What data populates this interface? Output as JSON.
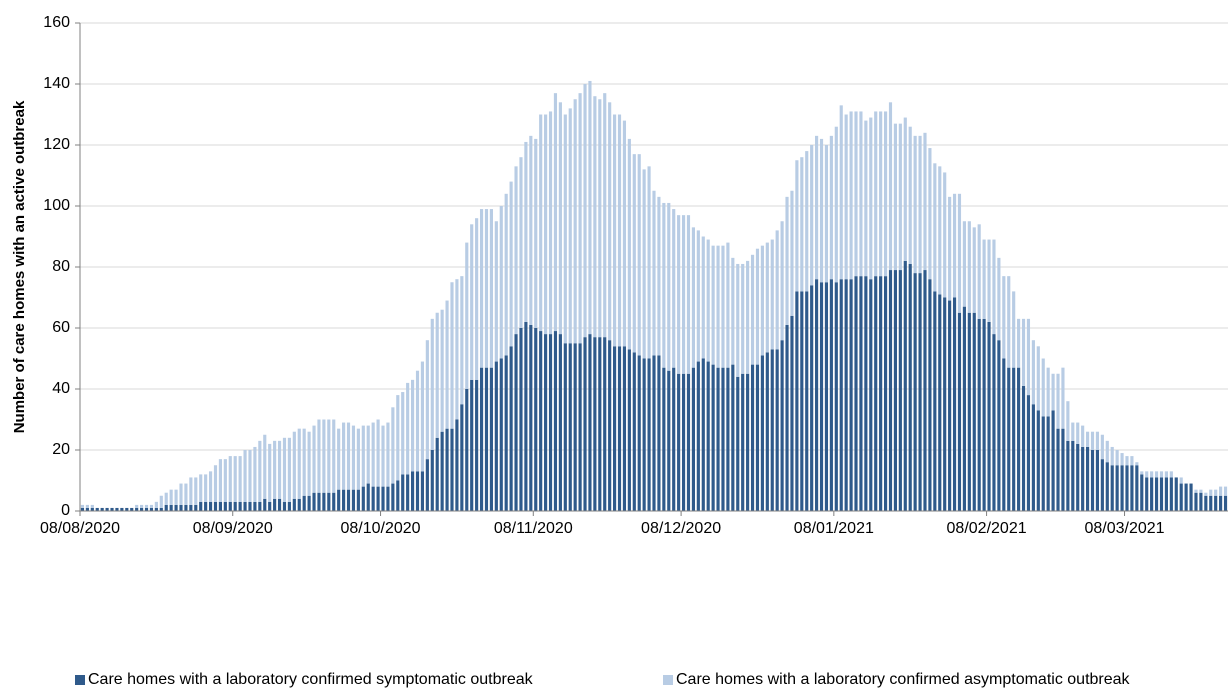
{
  "chart_data": {
    "type": "stacked_bar",
    "y_label": "Number of care homes with an active outbreak",
    "categories": [
      "08/08/2020",
      null,
      null,
      null,
      null,
      null,
      null,
      null,
      null,
      null,
      null,
      null,
      null,
      null,
      null,
      null,
      null,
      null,
      null,
      null,
      null,
      null,
      null,
      null,
      null,
      null,
      null,
      null,
      null,
      null,
      null,
      "08/09/2020",
      null,
      null,
      null,
      null,
      null,
      null,
      null,
      null,
      null,
      null,
      null,
      null,
      null,
      null,
      null,
      null,
      null,
      null,
      null,
      null,
      null,
      null,
      null,
      null,
      null,
      null,
      null,
      null,
      null,
      "08/10/2020",
      null,
      null,
      null,
      null,
      null,
      null,
      null,
      null,
      null,
      null,
      null,
      null,
      null,
      null,
      null,
      null,
      null,
      null,
      null,
      null,
      null,
      null,
      null,
      null,
      null,
      null,
      null,
      null,
      null,
      null,
      "08/11/2020",
      null,
      null,
      null,
      null,
      null,
      null,
      null,
      null,
      null,
      null,
      null,
      null,
      null,
      null,
      null,
      null,
      null,
      null,
      null,
      null,
      null,
      null,
      null,
      null,
      null,
      null,
      null,
      null,
      null,
      "08/12/2020",
      null,
      null,
      null,
      null,
      null,
      null,
      null,
      null,
      null,
      null,
      null,
      null,
      null,
      null,
      null,
      null,
      null,
      null,
      null,
      null,
      null,
      null,
      null,
      null,
      null,
      null,
      null,
      null,
      null,
      null,
      "08/01/2021",
      null,
      null,
      null,
      null,
      null,
      null,
      null,
      null,
      null,
      null,
      null,
      null,
      null,
      null,
      null,
      null,
      null,
      null,
      null,
      null,
      null,
      null,
      null,
      null,
      null,
      null,
      null,
      null,
      null,
      null,
      "08/02/2021",
      null,
      null,
      null,
      null,
      null,
      null,
      null,
      null,
      null,
      null,
      null,
      null,
      null,
      null,
      null,
      null,
      null,
      null,
      null,
      null,
      null,
      null,
      null,
      null,
      null,
      null,
      null,
      "08/03/2021",
      null,
      null,
      null,
      null,
      null,
      null,
      null,
      null,
      null,
      null,
      null,
      null,
      null,
      null,
      null,
      null,
      null,
      null,
      null,
      null
    ],
    "series": [
      {
        "name": "Care homes with a laboratory confirmed symptomatic outbreak",
        "color": "#2f5a8b",
        "values": [
          1,
          1,
          1,
          1,
          1,
          1,
          1,
          1,
          1,
          1,
          1,
          1,
          1,
          1,
          1,
          1,
          1,
          2,
          2,
          2,
          2,
          2,
          2,
          2,
          3,
          3,
          3,
          3,
          3,
          3,
          3,
          3,
          3,
          3,
          3,
          3,
          3,
          4,
          3,
          4,
          4,
          3,
          3,
          4,
          4,
          5,
          5,
          6,
          6,
          6,
          6,
          6,
          7,
          7,
          7,
          7,
          7,
          8,
          9,
          8,
          8,
          8,
          8,
          9,
          10,
          12,
          12,
          13,
          13,
          13,
          17,
          20,
          24,
          26,
          27,
          27,
          30,
          35,
          40,
          43,
          43,
          47,
          47,
          47,
          49,
          50,
          51,
          54,
          58,
          60,
          62,
          61,
          60,
          59,
          58,
          58,
          59,
          58,
          55,
          55,
          55,
          55,
          57,
          58,
          57,
          57,
          57,
          56,
          54,
          54,
          54,
          53,
          52,
          51,
          50,
          50,
          51,
          51,
          47,
          46,
          47,
          45,
          45,
          45,
          47,
          49,
          50,
          49,
          48,
          47,
          47,
          47,
          48,
          44,
          45,
          45,
          48,
          48,
          51,
          52,
          53,
          53,
          56,
          61,
          64,
          72,
          72,
          72,
          74,
          76,
          75,
          75,
          76,
          75,
          76,
          76,
          76,
          77,
          77,
          77,
          76,
          77,
          77,
          77,
          79,
          79,
          79,
          82,
          81,
          78,
          78,
          79,
          76,
          72,
          71,
          70,
          69,
          70,
          65,
          67,
          65,
          65,
          63,
          63,
          62,
          58,
          56,
          50,
          47,
          47,
          47,
          41,
          38,
          35,
          33,
          31,
          31,
          33,
          27,
          27,
          23,
          23,
          22,
          21,
          21,
          20,
          20,
          17,
          16,
          15,
          15,
          15,
          15,
          15,
          15,
          12,
          11,
          11,
          11,
          11,
          11,
          11,
          11,
          9,
          9,
          9,
          6,
          6,
          5,
          5,
          5,
          5,
          5
        ]
      },
      {
        "name": "Care homes with a laboratory confirmed asymptomatic outbreak",
        "color": "#b8cce4",
        "values": [
          1,
          1,
          1,
          0,
          0,
          0,
          0,
          0,
          0,
          0,
          0,
          1,
          1,
          1,
          1,
          2,
          4,
          4,
          5,
          5,
          7,
          7,
          9,
          9,
          9,
          9,
          10,
          12,
          14,
          14,
          15,
          15,
          15,
          17,
          17,
          18,
          20,
          21,
          19,
          19,
          19,
          21,
          21,
          22,
          23,
          22,
          21,
          22,
          24,
          24,
          24,
          24,
          20,
          22,
          22,
          21,
          20,
          20,
          19,
          21,
          22,
          20,
          21,
          25,
          28,
          27,
          30,
          30,
          33,
          36,
          39,
          43,
          41,
          40,
          42,
          48,
          46,
          42,
          48,
          51,
          53,
          52,
          52,
          52,
          46,
          50,
          53,
          54,
          55,
          56,
          59,
          62,
          62,
          71,
          72,
          73,
          78,
          76,
          75,
          77,
          80,
          82,
          83,
          83,
          79,
          78,
          80,
          78,
          76,
          76,
          74,
          69,
          65,
          66,
          62,
          63,
          54,
          52,
          54,
          55,
          52,
          52,
          52,
          52,
          46,
          43,
          40,
          40,
          39,
          40,
          40,
          41,
          35,
          37,
          36,
          37,
          36,
          38,
          36,
          36,
          36,
          39,
          39,
          42,
          41,
          43,
          44,
          46,
          46,
          47,
          47,
          45,
          47,
          51,
          57,
          54,
          55,
          54,
          54,
          51,
          53,
          54,
          54,
          54,
          55,
          48,
          48,
          47,
          45,
          45,
          45,
          45,
          43,
          42,
          42,
          41,
          34,
          34,
          39,
          28,
          30,
          28,
          31,
          26,
          27,
          31,
          27,
          27,
          30,
          25,
          16,
          22,
          25,
          21,
          21,
          19,
          16,
          12,
          18,
          20,
          13,
          6,
          7,
          7,
          5,
          6,
          6,
          8,
          7,
          6,
          5,
          4,
          3,
          3,
          1,
          1,
          2,
          2,
          2,
          2,
          2,
          2,
          0,
          2,
          0,
          0,
          1,
          1,
          1,
          2,
          2,
          3,
          3
        ]
      }
    ],
    "ylim": [
      0,
      160
    ],
    "yticks": [
      0,
      20,
      40,
      60,
      80,
      100,
      120,
      140,
      160
    ],
    "grid": true,
    "legend": "bottom"
  }
}
